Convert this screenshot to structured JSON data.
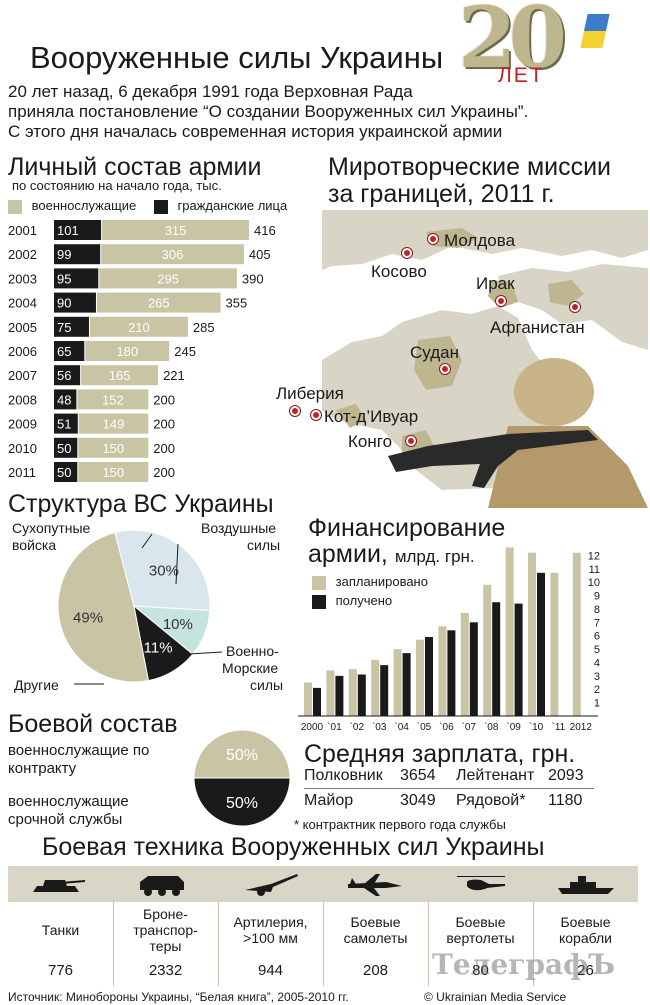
{
  "header": {
    "title": "Вооруженные силы Украины",
    "intro": [
      "20 лет назад, 6 декабря 1991 года Верховная Рада",
      "приняла постановление “О создании Вооруженных сил Украины”.",
      "С этого дня началась современная история украинской армии"
    ],
    "logo_number": "20",
    "logo_word": "ЛЕТ"
  },
  "personnel": {
    "title": "Личный состав армии",
    "subtitle": "по состоянию на начало года, тыс.",
    "legend_military": "военнослужащие",
    "legend_civil": "гражданские лица"
  },
  "missions": {
    "title_line1": "Миротворческие миссии",
    "title_line2": "за границей, 2011 г.",
    "countries": [
      "Молдова",
      "Косово",
      "Ирак",
      "Афганистан",
      "Судан",
      "Либерия",
      "Кот-д’Ивуар",
      "Конго"
    ]
  },
  "structure": {
    "title": "Структура ВС Украины",
    "labels": {
      "land": [
        "Сухопутные",
        "войска"
      ],
      "air": [
        "Воздушные",
        "силы"
      ],
      "navy": [
        "Военно-",
        "Морские",
        "силы"
      ],
      "other": "Другие"
    }
  },
  "funding": {
    "title_line1": "Финансирование",
    "title_line2": "армии,",
    "unit": "млрд. грн.",
    "legend_planned": "запланировано",
    "legend_received": "получено"
  },
  "combat": {
    "title": "Боевой состав",
    "contract": [
      "военнослужащие по",
      "контракту"
    ],
    "conscript": [
      "военнослужащие",
      "срочной службы"
    ]
  },
  "salary": {
    "title": "Средняя зарплата, грн.",
    "rows": [
      {
        "rank1": "Полковник",
        "val1": "3654",
        "rank2": "Лейтенант",
        "val2": "2093"
      },
      {
        "rank1": "Майор",
        "val1": "3049",
        "rank2": "Рядовой*",
        "val2": "1180"
      }
    ],
    "note": "* контрактник первого года службы"
  },
  "equipment": {
    "title": "Боевая техника Вооруженных сил Украины",
    "items": [
      {
        "label": "Танки",
        "value": "776",
        "icon": "tank-icon"
      },
      {
        "label": "Бронетранспортеры",
        "value": "2332",
        "icon": "apc-icon"
      },
      {
        "label": "Артилерия, >100 мм",
        "value": "944",
        "icon": "artillery-icon"
      },
      {
        "label": "Боевые самолеты",
        "value": "208",
        "icon": "jet-icon"
      },
      {
        "label": "Боевые вертолеты",
        "value": "80",
        "icon": "helicopter-icon"
      },
      {
        "label": "Боевые корабли",
        "value": "26",
        "icon": "ship-icon"
      }
    ],
    "label_lines": [
      [
        "Танки"
      ],
      [
        "Броне-",
        "транспор-",
        "теры"
      ],
      [
        "Артилерия,",
        ">100 мм"
      ],
      [
        "Боевые",
        "самолеты"
      ],
      [
        "Боевые",
        "вертолеты"
      ],
      [
        "Боевые",
        "корабли"
      ]
    ]
  },
  "footer": {
    "source": "Источник: Минобороны Украины, “Белая книга”, 2005-2010 гг.",
    "copyright": "© Ukrainian Media Service",
    "watermark": "ТелеграфЪ"
  },
  "colors": {
    "khaki": "#c9c4a4",
    "black": "#1a1a1a",
    "light_blue": "#d9e6ee",
    "mint": "#c5e3df",
    "red": "#c22026",
    "map_land": "#d8d5c6",
    "map_sea": "#ffffff"
  },
  "chart_data": [
    {
      "type": "bar",
      "orientation": "horizontal",
      "stacked": true,
      "title": "Личный состав армии",
      "subtitle": "по состоянию на начало года, тыс.",
      "categories": [
        "2001",
        "2002",
        "2003",
        "2004",
        "2005",
        "2006",
        "2007",
        "2008",
        "2009",
        "2010",
        "2011"
      ],
      "series": [
        {
          "name": "гражданские лица",
          "values": [
            101,
            99,
            95,
            90,
            75,
            65,
            56,
            48,
            51,
            50,
            50
          ],
          "color": "#1a1a1a"
        },
        {
          "name": "военнослужащие",
          "values": [
            315,
            306,
            295,
            265,
            210,
            180,
            165,
            152,
            149,
            150,
            150
          ],
          "color": "#c9c4a4"
        }
      ],
      "totals": [
        416,
        405,
        390,
        355,
        285,
        245,
        221,
        200,
        200,
        200,
        200
      ],
      "xlim": [
        0,
        416
      ]
    },
    {
      "type": "pie",
      "title": "Структура ВС Украины",
      "slices": [
        {
          "label": "Сухопутные войска",
          "value": 49,
          "color": "#c9c4a4"
        },
        {
          "label": "Воздушные силы",
          "value": 30,
          "color": "#d9e6ee"
        },
        {
          "label": "Военно-Морские силы",
          "value": 10,
          "color": "#c5e3df"
        },
        {
          "label": "Другие",
          "value": 11,
          "color": "#1a1a1a"
        }
      ]
    },
    {
      "type": "bar",
      "title": "Финансирование армии",
      "ylabel": "млрд. грн.",
      "categories": [
        "2000",
        "`01",
        "`02",
        "`03",
        "`04",
        "`05",
        "`06",
        "`07",
        "`08",
        "`09",
        "`10",
        "`11",
        "2012"
      ],
      "series": [
        {
          "name": "запланировано",
          "values": [
            2.5,
            3.4,
            3.5,
            4.2,
            5.0,
            5.7,
            6.7,
            7.7,
            9.8,
            12.6,
            12.2,
            10.7,
            12.2
          ],
          "color": "#c9c4a4"
        },
        {
          "name": "получено",
          "values": [
            2.1,
            3.0,
            3.1,
            3.8,
            4.7,
            5.9,
            6.4,
            7.0,
            8.5,
            8.4,
            10.7,
            null,
            null
          ],
          "color": "#1a1a1a"
        }
      ],
      "ylim": [
        0,
        13
      ],
      "yticks": [
        1,
        2,
        3,
        4,
        5,
        6,
        7,
        8,
        9,
        10,
        11,
        12
      ]
    },
    {
      "type": "pie",
      "title": "Боевой состав",
      "slices": [
        {
          "label": "военнослужащие по контракту",
          "value": 50,
          "color": "#c9c4a4"
        },
        {
          "label": "военнослужащие срочной службы",
          "value": 50,
          "color": "#1a1a1a"
        }
      ]
    }
  ]
}
